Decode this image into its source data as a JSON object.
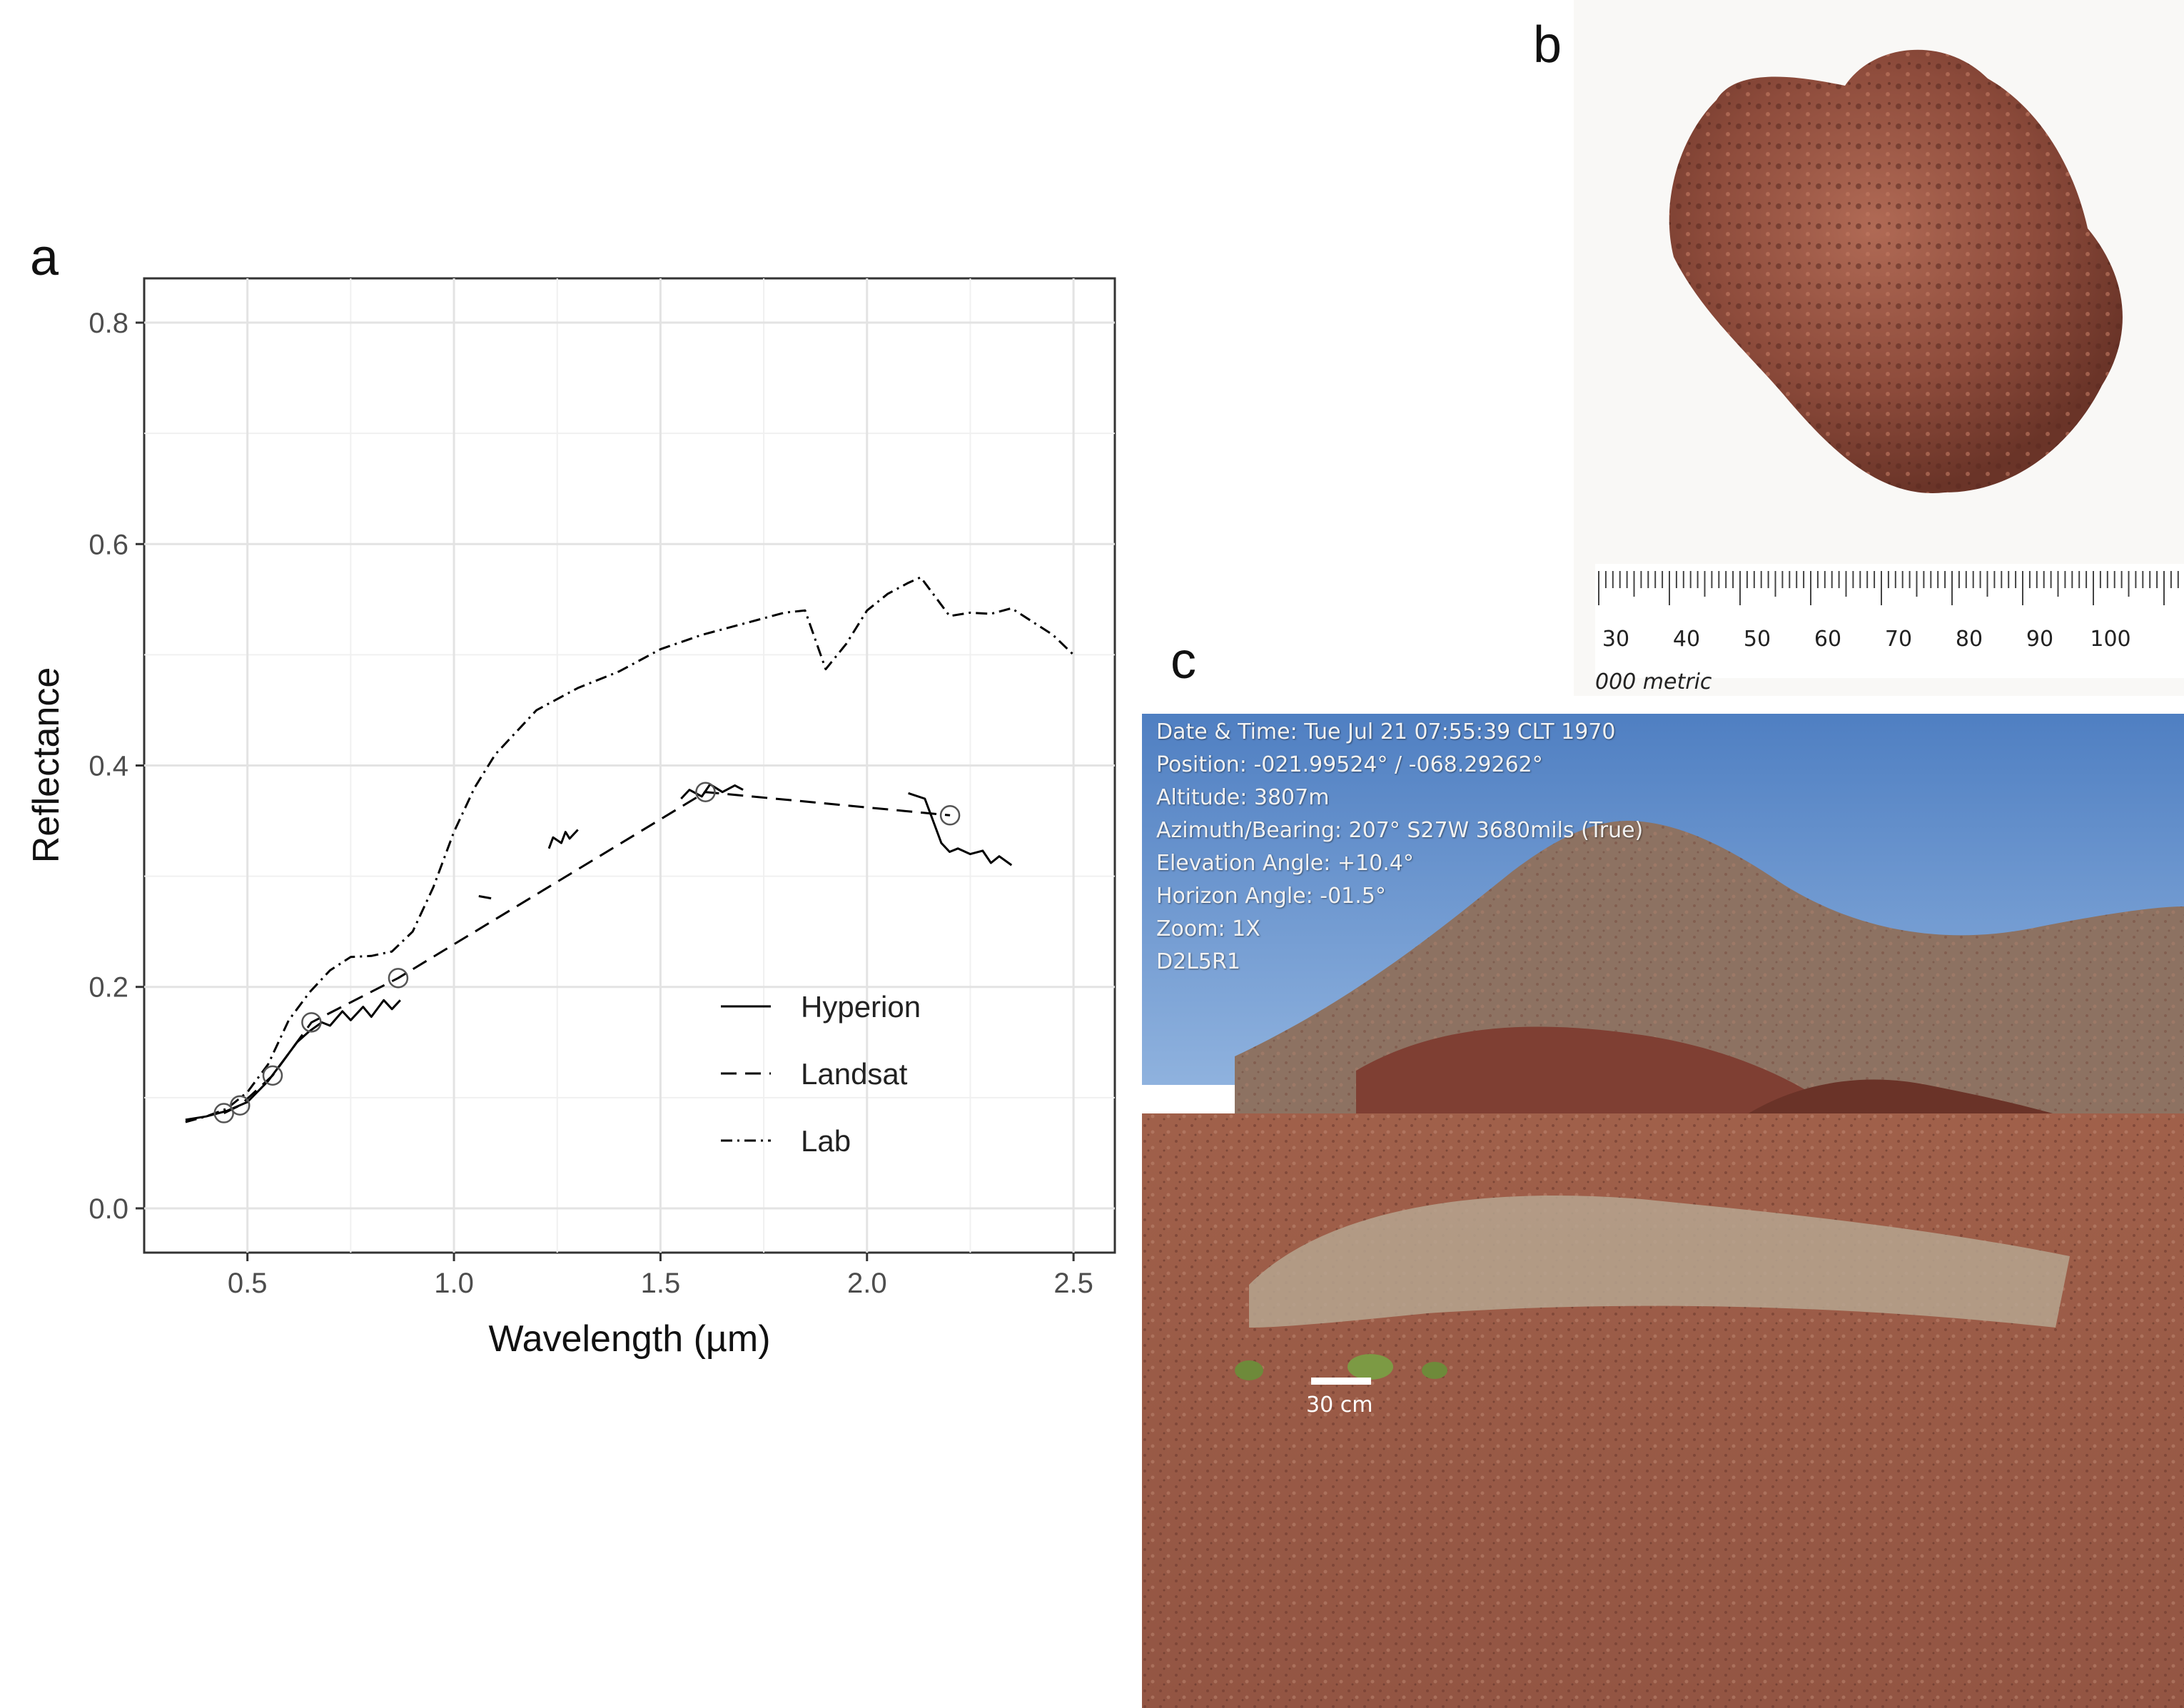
{
  "panel_labels": {
    "a": "a",
    "b": "b",
    "c": "c"
  },
  "chart_data": {
    "type": "line",
    "xlabel": "Wavelength (µm)",
    "ylabel": "Reflectance",
    "xlim": [
      0.25,
      2.6
    ],
    "ylim": [
      -0.04,
      0.84
    ],
    "x_ticks": [
      0.5,
      1.0,
      1.5,
      2.0,
      2.5
    ],
    "x_tick_labels": [
      "0.5",
      "1.0",
      "1.5",
      "2.0",
      "2.5"
    ],
    "y_ticks": [
      0.0,
      0.2,
      0.4,
      0.6,
      0.8
    ],
    "y_tick_labels": [
      "0.0",
      "0.2",
      "0.4",
      "0.6",
      "0.8"
    ],
    "grid": true,
    "legend_position": "bottom-right",
    "series": [
      {
        "name": "Hyperion",
        "linestyle": "solid",
        "segments": [
          {
            "x": [
              0.35,
              0.4,
              0.45,
              0.5,
              0.55,
              0.6,
              0.62,
              0.65,
              0.68,
              0.7,
              0.73,
              0.75,
              0.78,
              0.8,
              0.83,
              0.85,
              0.87
            ],
            "y": [
              0.08,
              0.083,
              0.088,
              0.096,
              0.115,
              0.14,
              0.15,
              0.16,
              0.168,
              0.165,
              0.178,
              0.17,
              0.182,
              0.173,
              0.188,
              0.18,
              0.188
            ]
          },
          {
            "x": [
              1.23,
              1.24,
              1.26,
              1.27,
              1.28,
              1.3
            ],
            "y": [
              0.325,
              0.335,
              0.33,
              0.34,
              0.334,
              0.342
            ]
          },
          {
            "x": [
              1.55,
              1.57,
              1.6,
              1.62,
              1.65,
              1.68,
              1.7
            ],
            "y": [
              0.37,
              0.378,
              0.372,
              0.383,
              0.376,
              0.382,
              0.378
            ]
          },
          {
            "x": [
              2.1,
              2.14,
              2.16,
              2.18,
              2.2,
              2.22,
              2.25,
              2.28,
              2.3,
              2.32,
              2.35
            ],
            "y": [
              0.375,
              0.37,
              0.35,
              0.33,
              0.322,
              0.325,
              0.32,
              0.323,
              0.312,
              0.318,
              0.31
            ]
          }
        ]
      },
      {
        "name": "Landsat",
        "linestyle": "dashed",
        "x": [
          0.443,
          0.482,
          0.561,
          0.655,
          0.865,
          1.609,
          2.201
        ],
        "y": [
          0.086,
          0.093,
          0.12,
          0.168,
          0.208,
          0.376,
          0.355
        ]
      },
      {
        "name": "Lab",
        "linestyle": "dotdash",
        "x": [
          0.35,
          0.4,
          0.45,
          0.5,
          0.55,
          0.6,
          0.65,
          0.7,
          0.75,
          0.8,
          0.85,
          0.9,
          0.95,
          1.0,
          1.05,
          1.1,
          1.2,
          1.3,
          1.4,
          1.5,
          1.6,
          1.7,
          1.8,
          1.85,
          1.9,
          1.95,
          2.0,
          2.05,
          2.1,
          2.13,
          2.15,
          2.2,
          2.25,
          2.3,
          2.35,
          2.4,
          2.45,
          2.5
        ],
        "y": [
          0.078,
          0.083,
          0.09,
          0.105,
          0.13,
          0.17,
          0.195,
          0.215,
          0.227,
          0.228,
          0.232,
          0.25,
          0.29,
          0.34,
          0.38,
          0.41,
          0.45,
          0.47,
          0.485,
          0.505,
          0.518,
          0.528,
          0.538,
          0.54,
          0.487,
          0.51,
          0.54,
          0.555,
          0.565,
          0.57,
          0.56,
          0.535,
          0.538,
          0.537,
          0.542,
          0.53,
          0.518,
          0.5
        ]
      }
    ],
    "markers": {
      "shape": "open-circle",
      "x": [
        0.443,
        0.482,
        0.561,
        0.655,
        0.865,
        1.609,
        2.201
      ],
      "y": [
        0.086,
        0.093,
        0.12,
        0.168,
        0.208,
        0.376,
        0.355
      ]
    },
    "stray_marks": [
      {
        "x": [
          1.06,
          1.09
        ],
        "y": [
          0.282,
          0.28
        ]
      }
    ]
  },
  "panel_b": {
    "ruler_numbers": [
      "30",
      "40",
      "50",
      "60",
      "70",
      "80",
      "90",
      "100"
    ],
    "ruler_caption": "000 metric"
  },
  "panel_c": {
    "overlay_lines": [
      "Date & Time: Tue Jul 21 07:55:39 CLT 1970",
      "Position: -021.99524° / -068.29262°",
      "Altitude: 3807m",
      "Azimuth/Bearing: 207° S27W  3680mils (True)",
      "Elevation Angle: +10.4°",
      "Horizon Angle: -01.5°",
      "Zoom: 1X",
      "D2L5R1"
    ],
    "scale_label": "30 cm",
    "colors": {
      "sky": "#5b88c9",
      "ground": "#9b5a45",
      "hill": "#8a6a55"
    }
  }
}
